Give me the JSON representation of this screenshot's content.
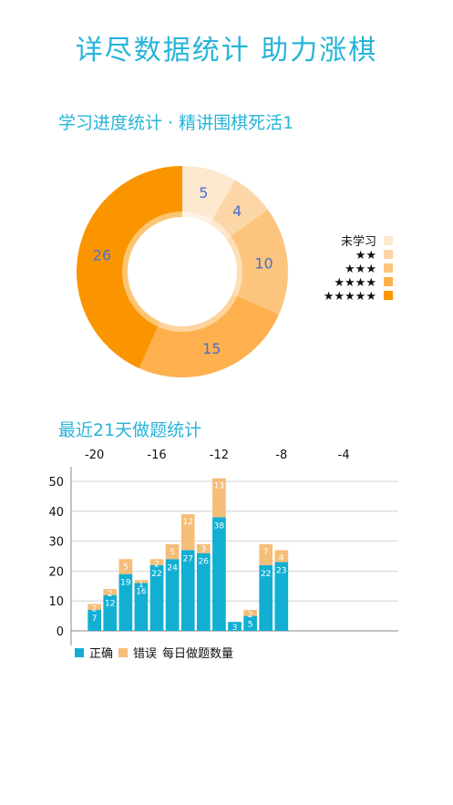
{
  "headline": "详尽数据统计 助力涨棋",
  "donut": {
    "title": "学习进度统计 · 精讲围棋死活1",
    "chart_data": {
      "type": "pie",
      "categories": [
        "未学习",
        "★★",
        "★★★",
        "★★★★",
        "★★★★★"
      ],
      "values": [
        5,
        4,
        10,
        15,
        26
      ],
      "colors": [
        "#fde8d0",
        "#fcd6a6",
        "#fcc47c",
        "#fdb04d",
        "#fa9500"
      ]
    }
  },
  "bars": {
    "title": "最近21天做题统计",
    "chart_data": {
      "type": "bar",
      "stacked": true,
      "x": [
        -21,
        -20,
        -19,
        -18,
        -17,
        -16,
        -15,
        -14,
        -13,
        -12,
        -11,
        -10,
        -9,
        -8,
        -7,
        -6,
        -5,
        -4,
        -3,
        -2,
        -1
      ],
      "x_ticks": [
        -20,
        -16,
        -12,
        -8,
        -4
      ],
      "ylim": [
        0,
        50
      ],
      "y_ticks": [
        0,
        10,
        20,
        30,
        40,
        50
      ],
      "series": [
        {
          "name": "正确",
          "color": "#12afd3",
          "values": [
            0,
            7,
            12,
            19,
            16,
            22,
            24,
            27,
            26,
            38,
            3,
            5,
            22,
            23,
            0,
            0,
            0,
            0,
            0,
            0,
            0
          ],
          "labels": [
            "",
            "7",
            "12",
            "19",
            "16",
            "22",
            "24",
            "27",
            "26",
            "38",
            "3",
            "5",
            "22",
            "23",
            "",
            "",
            "",
            "",
            "",
            "",
            ""
          ]
        },
        {
          "name": "错误",
          "color": "#f5be78",
          "values": [
            0,
            2,
            2,
            5,
            1,
            2,
            5,
            12,
            3,
            13,
            0,
            2,
            7,
            4,
            0,
            0,
            0,
            0,
            0,
            0,
            0
          ],
          "labels": [
            "",
            "2",
            "2",
            "5",
            "1",
            "2",
            "5",
            "12",
            "3",
            "13",
            "",
            "2",
            "7",
            "4",
            "",
            "",
            "",
            "",
            "",
            "",
            ""
          ]
        }
      ],
      "legend_extra": "每日做题数量"
    }
  }
}
